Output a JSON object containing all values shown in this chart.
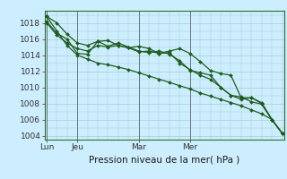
{
  "background_color": "#cceeff",
  "plot_bg_color": "#cceeff",
  "grid_color": "#aacccc",
  "line_color": "#1e5c1e",
  "marker_color": "#1e5c1e",
  "xlabel": "Pression niveau de la mer( hPa )",
  "ylim": [
    1003.5,
    1019.5
  ],
  "yticks": [
    1004,
    1006,
    1008,
    1010,
    1012,
    1014,
    1016,
    1018
  ],
  "xtick_labels": [
    "Lun",
    "Jeu",
    "Mar",
    "Mer"
  ],
  "xtick_positions": [
    0,
    3,
    9,
    14
  ],
  "vline_positions": [
    0,
    3,
    9,
    14
  ],
  "series": [
    [
      1018.8,
      1018.0,
      1016.6,
      1015.5,
      1015.2,
      1015.7,
      1015.8,
      1015.2,
      1014.9,
      1015.1,
      1014.8,
      1014.2,
      1014.5,
      1014.8,
      1014.2,
      1013.2,
      1012.1,
      1011.7,
      1011.5,
      1008.7,
      1008.7,
      1008.1,
      1006.0,
      1004.3
    ],
    [
      1018.0,
      1016.5,
      1015.5,
      1014.8,
      1014.5,
      1015.2,
      1015.0,
      1015.2,
      1014.9,
      1014.4,
      1014.5,
      1014.2,
      1014.3,
      1013.0,
      1012.2,
      1011.5,
      1011.0,
      1010.0,
      1009.0,
      1008.8,
      1008.2,
      1007.9,
      1006.0,
      1004.3
    ],
    [
      1018.2,
      1016.7,
      1016.0,
      1014.2,
      1014.1,
      1015.7,
      1015.1,
      1015.5,
      1015.0,
      1014.5,
      1014.3,
      1014.5,
      1014.1,
      1013.3,
      1012.1,
      1011.8,
      1011.5,
      1010.0,
      1009.0,
      1008.5,
      1008.7,
      1008.0,
      1006.0,
      1004.3
    ],
    [
      1018.8,
      1017.0,
      1015.2,
      1014.0,
      1013.5,
      1013.0,
      1012.8,
      1012.5,
      1012.2,
      1011.8,
      1011.4,
      1011.0,
      1010.6,
      1010.2,
      1009.8,
      1009.3,
      1008.9,
      1008.5,
      1008.1,
      1007.7,
      1007.2,
      1006.7,
      1006.0,
      1004.3
    ]
  ],
  "x_values": [
    0,
    1,
    2,
    3,
    4,
    5,
    6,
    7,
    8,
    9,
    10,
    11,
    12,
    13,
    14,
    15,
    16,
    17,
    18,
    19,
    20,
    21,
    22,
    23
  ],
  "xlim": [
    -0.2,
    23.2
  ]
}
